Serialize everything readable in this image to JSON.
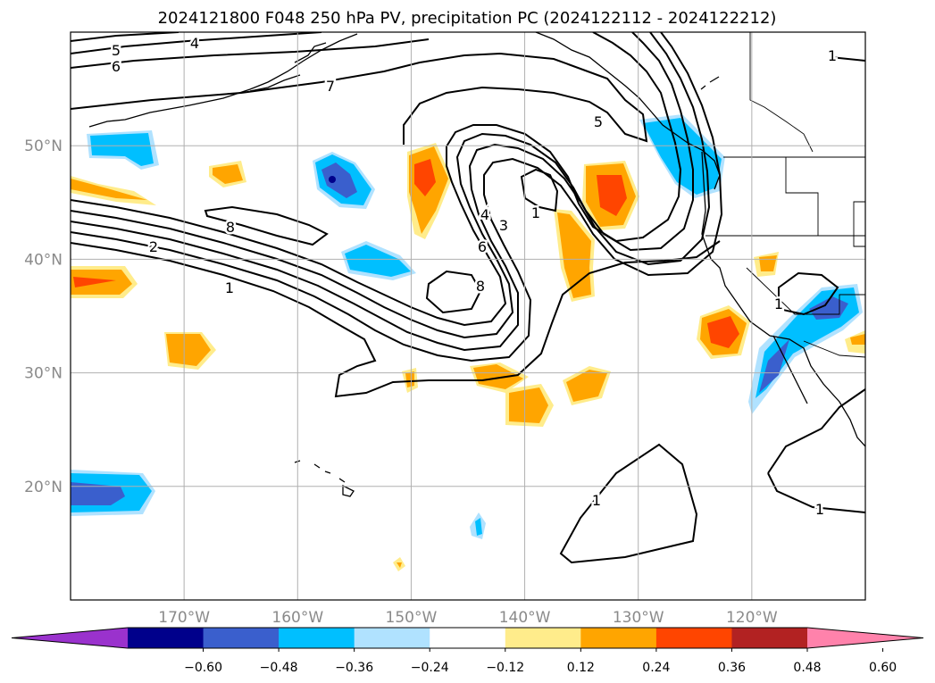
{
  "title": "2024121800 F048 250 hPa PV, precipitation PC (2024122112 - 2024122212)",
  "map": {
    "lon_range": [
      -180,
      -110
    ],
    "lat_range": [
      10,
      60
    ],
    "lat_ticks": [
      {
        "lat": 50,
        "label": "50°N"
      },
      {
        "lat": 40,
        "label": "40°N"
      },
      {
        "lat": 30,
        "label": "30°N"
      },
      {
        "lat": 20,
        "label": "20°N"
      }
    ],
    "lon_ticks": [
      {
        "lon": -170,
        "label": "170°W"
      },
      {
        "lon": -160,
        "label": "160°W"
      },
      {
        "lon": -150,
        "label": "150°W"
      },
      {
        "lon": -140,
        "label": "140°W"
      },
      {
        "lon": -130,
        "label": "130°W"
      },
      {
        "lon": -120,
        "label": "120°W"
      }
    ],
    "contour_labels": [
      "5",
      "4",
      "6",
      "7",
      "8",
      "2",
      "1",
      "5",
      "4",
      "3",
      "6",
      "8",
      "1",
      "1",
      "1",
      "1",
      "1"
    ]
  },
  "colorbar": {
    "colors": [
      "#9a32cd",
      "#00008b",
      "#3a5fcd",
      "#00bfff",
      "#b0e2ff",
      "#ffffff",
      "#ffec8b",
      "#ffa500",
      "#ff4500",
      "#b22222",
      "#ff82ab"
    ],
    "ticks": [
      "−0.60",
      "−0.48",
      "−0.36",
      "−0.24",
      "−0.12",
      "0.12",
      "0.24",
      "0.36",
      "0.48",
      "0.60"
    ]
  },
  "colors": {
    "light_blue": "#b0e2ff",
    "blue": "#00bfff",
    "mid_blue": "#3a5fcd",
    "dark_blue": "#00008b",
    "yellow": "#ffec8b",
    "orange": "#ffa500",
    "red_orange": "#ff4500"
  }
}
